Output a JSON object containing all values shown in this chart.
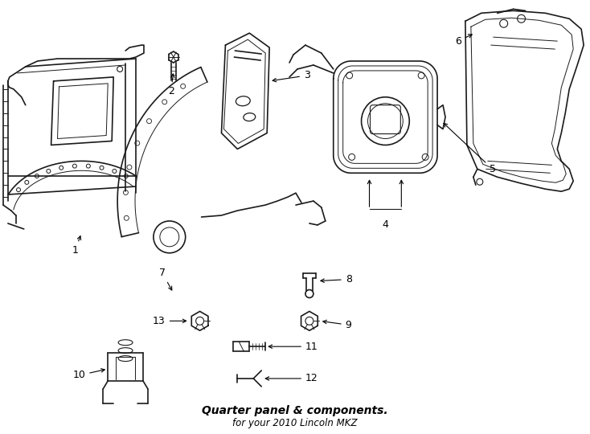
{
  "title": "Quarter panel & components.",
  "subtitle": "for your 2010 Lincoln MKZ",
  "background_color": "#ffffff",
  "line_color": "#1a1a1a",
  "label_fontsize": 9,
  "title_fontsize": 10
}
